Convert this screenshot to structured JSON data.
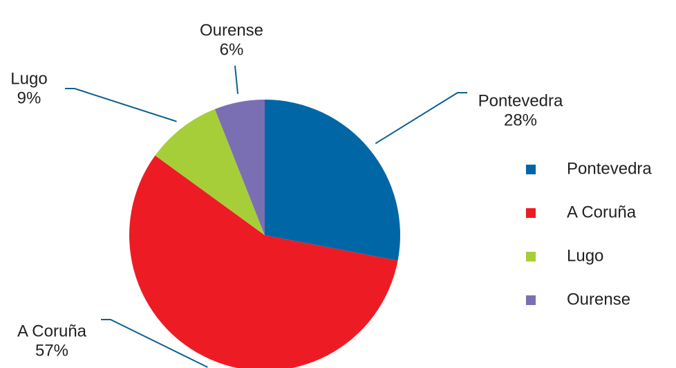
{
  "chart_data": {
    "type": "pie",
    "categories": [
      "Pontevedra",
      "A Coruña",
      "Lugo",
      "Ourense"
    ],
    "values": [
      28,
      57,
      9,
      6
    ],
    "value_labels": [
      "28%",
      "57%",
      "9%",
      "6%"
    ],
    "colors": [
      "#0066a6",
      "#ed1c24",
      "#a6ce39",
      "#7b6fb3"
    ],
    "legend": "right"
  }
}
